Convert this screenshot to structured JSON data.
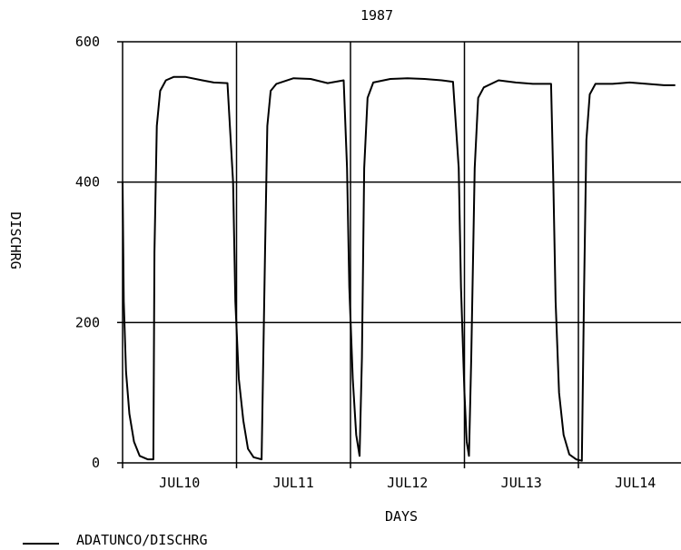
{
  "chart_data": {
    "type": "line",
    "title": "1987",
    "xlabel": "DAYS",
    "ylabel": "DISCHRG",
    "ylim": [
      0,
      600
    ],
    "yticks": [
      0,
      200,
      400,
      600
    ],
    "xlim": [
      0,
      4.85
    ],
    "x_unit": "days from JUL10 00:00",
    "day_labels": [
      "JUL10",
      "JUL11",
      "JUL12",
      "JUL13",
      "JUL14"
    ],
    "grid": true,
    "legend_position": "bottom-left",
    "series": [
      {
        "name": "ADATUNCO/DISCHRG",
        "color": "#000000",
        "points": [
          [
            0.0,
            400
          ],
          [
            0.01,
            230
          ],
          [
            0.03,
            130
          ],
          [
            0.06,
            70
          ],
          [
            0.1,
            30
          ],
          [
            0.15,
            10
          ],
          [
            0.22,
            5
          ],
          [
            0.27,
            5
          ],
          [
            0.28,
            300
          ],
          [
            0.3,
            480
          ],
          [
            0.33,
            530
          ],
          [
            0.38,
            545
          ],
          [
            0.45,
            550
          ],
          [
            0.55,
            550
          ],
          [
            0.7,
            545
          ],
          [
            0.8,
            542
          ],
          [
            0.92,
            541
          ],
          [
            0.97,
            400
          ],
          [
            0.99,
            230
          ],
          [
            1.02,
            120
          ],
          [
            1.06,
            60
          ],
          [
            1.1,
            20
          ],
          [
            1.15,
            8
          ],
          [
            1.22,
            5
          ],
          [
            1.25,
            300
          ],
          [
            1.27,
            480
          ],
          [
            1.3,
            530
          ],
          [
            1.35,
            540
          ],
          [
            1.5,
            548
          ],
          [
            1.65,
            547
          ],
          [
            1.8,
            541
          ],
          [
            1.94,
            545
          ],
          [
            1.97,
            420
          ],
          [
            1.99,
            250
          ],
          [
            2.02,
            120
          ],
          [
            2.05,
            40
          ],
          [
            2.08,
            10
          ],
          [
            2.1,
            150
          ],
          [
            2.12,
            420
          ],
          [
            2.15,
            520
          ],
          [
            2.2,
            542
          ],
          [
            2.35,
            547
          ],
          [
            2.5,
            548
          ],
          [
            2.65,
            547
          ],
          [
            2.8,
            545
          ],
          [
            2.9,
            543
          ],
          [
            2.95,
            420
          ],
          [
            2.97,
            250
          ],
          [
            3.0,
            100
          ],
          [
            3.02,
            30
          ],
          [
            3.04,
            10
          ],
          [
            3.06,
            150
          ],
          [
            3.09,
            420
          ],
          [
            3.12,
            520
          ],
          [
            3.17,
            535
          ],
          [
            3.3,
            545
          ],
          [
            3.45,
            542
          ],
          [
            3.6,
            540
          ],
          [
            3.73,
            540
          ],
          [
            3.76,
            540
          ],
          [
            3.78,
            400
          ],
          [
            3.8,
            230
          ],
          [
            3.83,
            100
          ],
          [
            3.87,
            40
          ],
          [
            3.92,
            12
          ],
          [
            3.98,
            5
          ],
          [
            4.03,
            3
          ],
          [
            4.05,
            250
          ],
          [
            4.07,
            460
          ],
          [
            4.1,
            525
          ],
          [
            4.15,
            540
          ],
          [
            4.3,
            540
          ],
          [
            4.45,
            542
          ],
          [
            4.6,
            540
          ],
          [
            4.75,
            538
          ],
          [
            4.85,
            538
          ]
        ]
      }
    ]
  }
}
